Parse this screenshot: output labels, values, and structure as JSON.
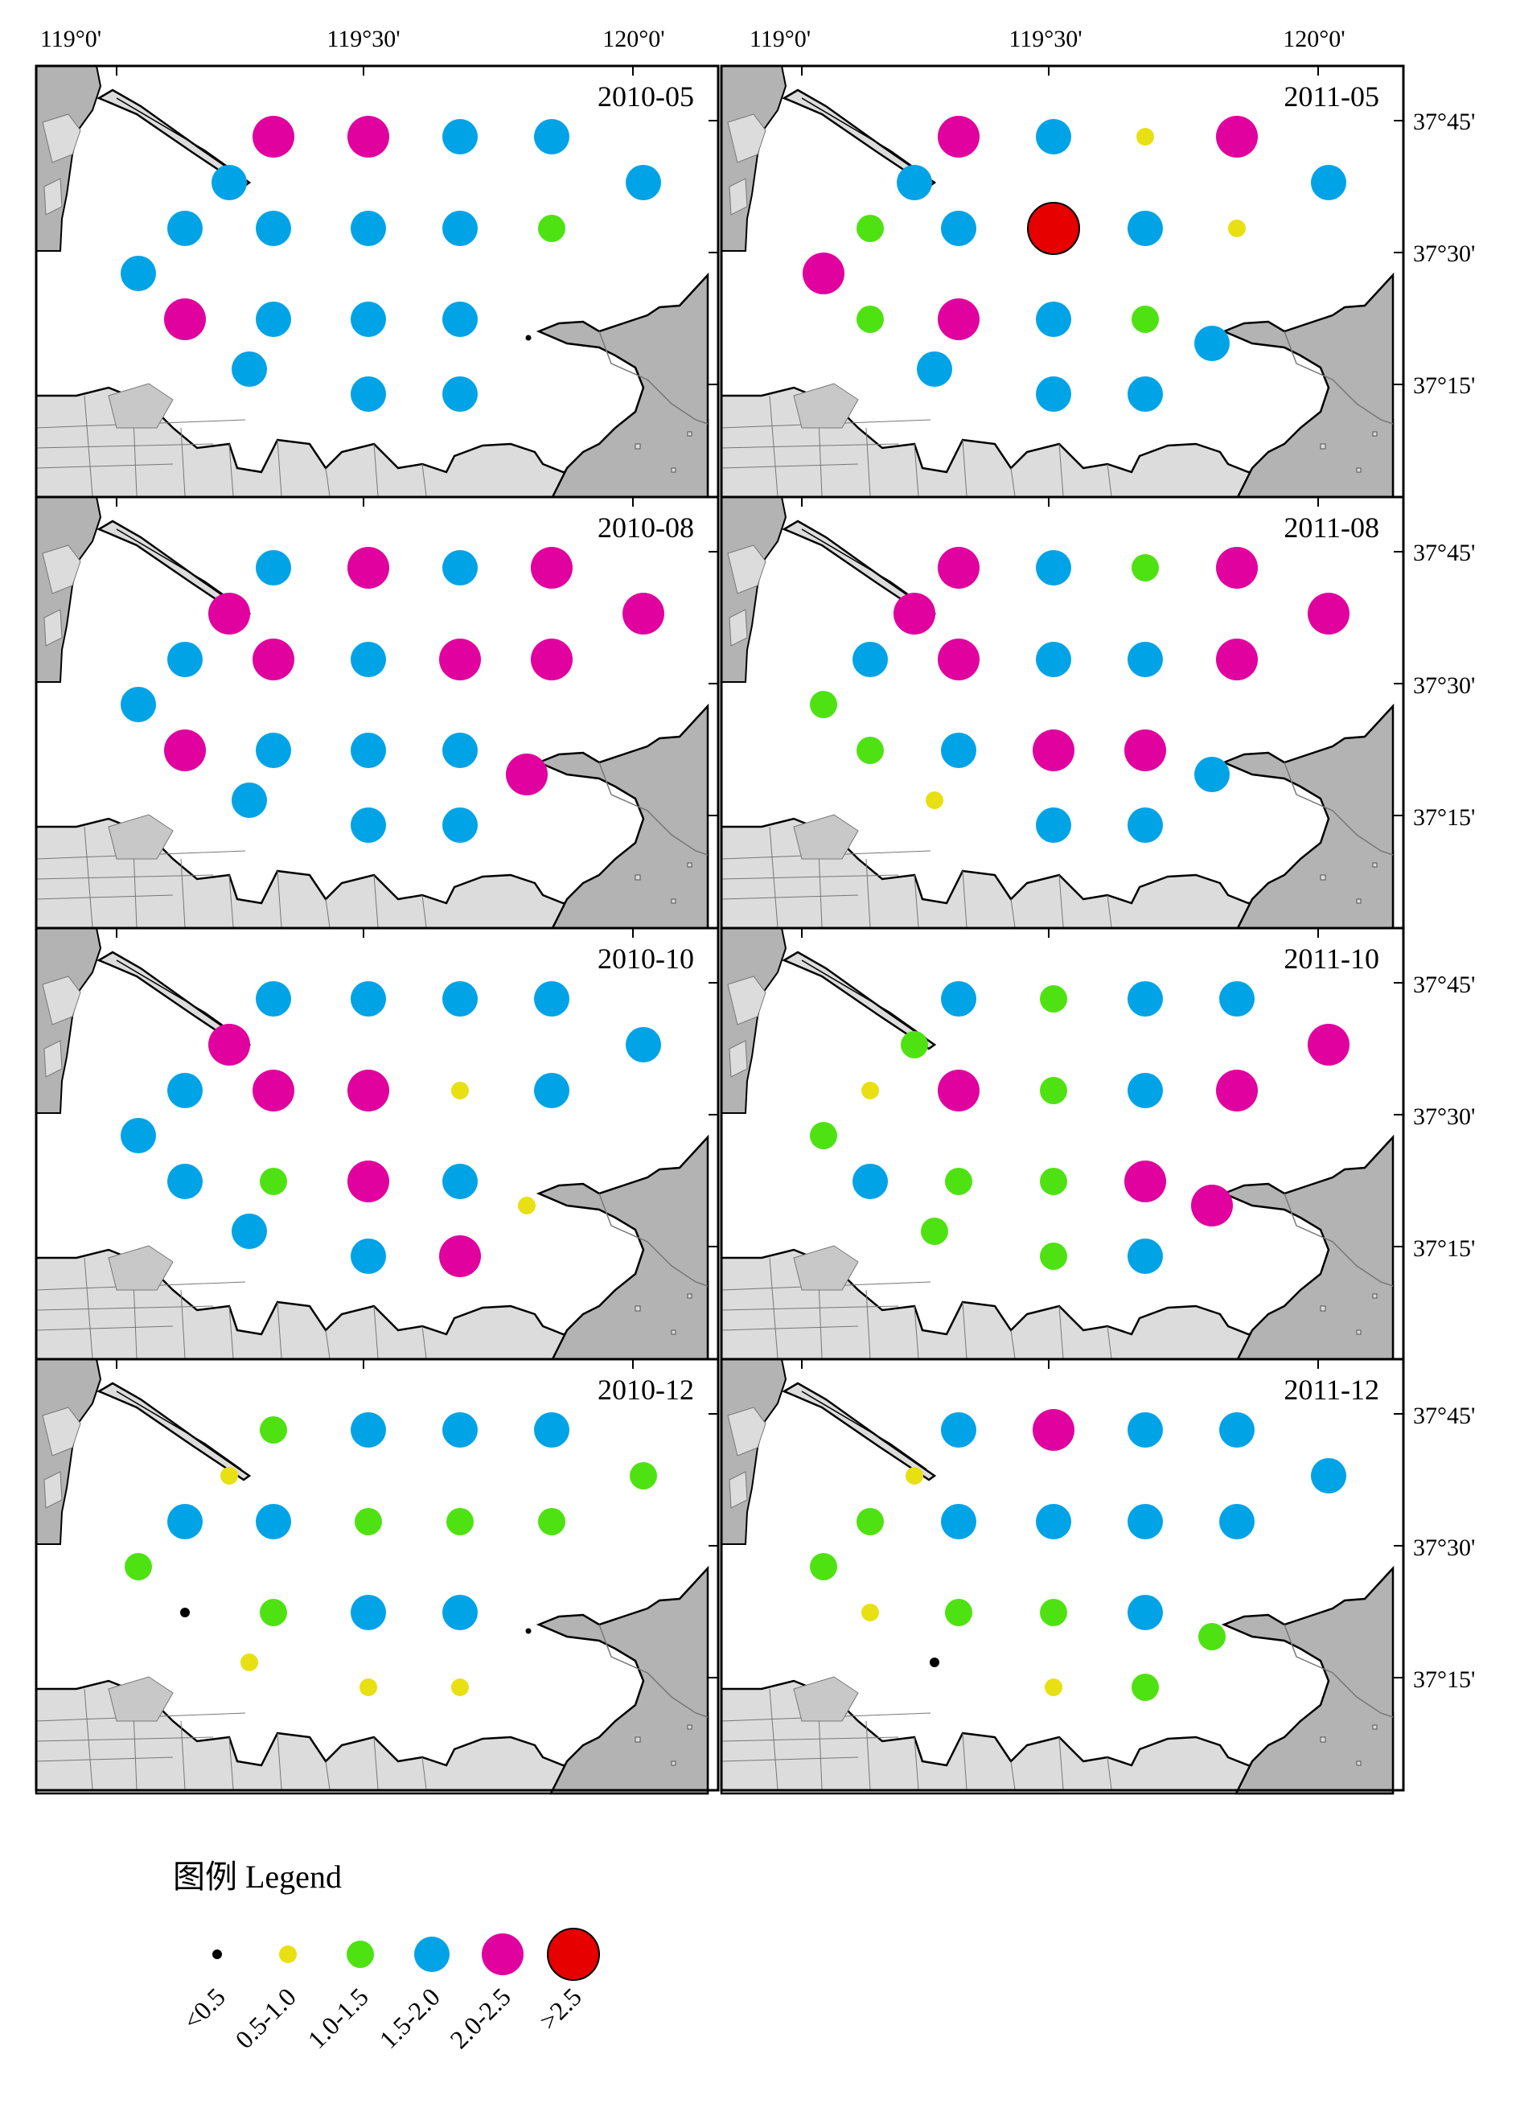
{
  "axes": {
    "lon_ticks": [
      "119°0'",
      "119°30'",
      "120°0'"
    ],
    "lat_ticks": [
      "37°45'",
      "37°30'",
      "37°15'"
    ]
  },
  "classes": [
    {
      "label": "<0.5",
      "color": "#000000"
    },
    {
      "label": "0.5-1.0",
      "color": "#e8e012"
    },
    {
      "label": "1.0-1.5",
      "color": "#4fe212"
    },
    {
      "label": "1.5-2.0",
      "color": "#00a3e6"
    },
    {
      "label": "2.0-2.5",
      "color": "#e0019e"
    },
    {
      "label": ">2.5",
      "color": "#e60000"
    }
  ],
  "colors": {
    "land": "#b3b3b3",
    "urban": "#dcdcdc",
    "sea": "#ffffff",
    "frame": "#000000"
  },
  "legend": {
    "title": "图例 Legend"
  },
  "panels": [
    {
      "label": "2010-05",
      "classes": [
        4,
        4,
        3,
        3,
        3,
        3,
        3,
        3,
        3,
        3,
        2,
        3,
        4,
        3,
        3,
        3,
        3,
        3,
        3
      ]
    },
    {
      "label": "2011-05",
      "classes": [
        4,
        3,
        1,
        4,
        3,
        3,
        2,
        3,
        5,
        3,
        1,
        4,
        2,
        4,
        3,
        2,
        3,
        3,
        3,
        3
      ]
    },
    {
      "label": "2010-08",
      "classes": [
        3,
        4,
        3,
        4,
        4,
        4,
        3,
        4,
        3,
        4,
        4,
        3,
        4,
        3,
        3,
        3,
        4,
        3,
        3,
        3
      ]
    },
    {
      "label": "2011-08",
      "classes": [
        4,
        3,
        2,
        4,
        4,
        4,
        3,
        4,
        3,
        3,
        4,
        2,
        2,
        3,
        4,
        4,
        3,
        1,
        3,
        3
      ]
    },
    {
      "label": "2010-10",
      "classes": [
        3,
        3,
        3,
        3,
        4,
        3,
        3,
        4,
        4,
        1,
        3,
        3,
        3,
        2,
        4,
        3,
        1,
        3,
        3,
        4
      ]
    },
    {
      "label": "2011-10",
      "classes": [
        3,
        2,
        3,
        3,
        2,
        4,
        1,
        4,
        2,
        3,
        4,
        2,
        3,
        2,
        2,
        4,
        4,
        2,
        2,
        3
      ]
    },
    {
      "label": "2010-12",
      "classes": [
        2,
        3,
        3,
        3,
        1,
        2,
        3,
        3,
        2,
        2,
        2,
        2,
        0,
        2,
        3,
        3,
        1,
        1,
        1
      ]
    },
    {
      "label": "2011-12",
      "classes": [
        3,
        4,
        3,
        3,
        1,
        3,
        2,
        3,
        3,
        3,
        3,
        2,
        1,
        2,
        2,
        3,
        2,
        0,
        1,
        2
      ]
    }
  ]
}
